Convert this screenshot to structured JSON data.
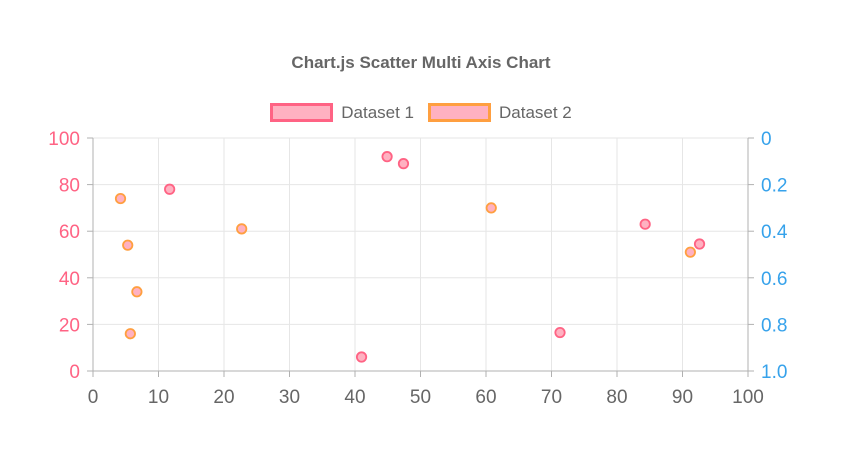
{
  "chart_data": {
    "type": "scatter",
    "title": "Chart.js Scatter Multi Axis Chart",
    "legend_position": "top",
    "grid": true,
    "colors": {
      "grid": "#e6e6e6",
      "axis_border": "#b1b1b1",
      "title_text": "#666666",
      "legend_text": "#666666",
      "x_tick_text": "#666666",
      "left_tick_text": "#ff6384",
      "right_tick_text": "#36a2eb",
      "point_fill": "#ffb1c1",
      "dataset1_border": "#ff6384",
      "dataset2_border": "#ff9f40"
    },
    "x_axis": {
      "min": 0,
      "max": 100,
      "ticks": [
        0,
        10,
        20,
        30,
        40,
        50,
        60,
        70,
        80,
        90,
        100
      ]
    },
    "y_left": {
      "min": 0,
      "max": 100,
      "ticks": [
        0,
        20,
        40,
        60,
        80,
        100
      ],
      "reversed": false
    },
    "y_right": {
      "min": 0,
      "max": 1,
      "tick_labels": [
        "0",
        "0.2",
        "0.4",
        "0.6",
        "0.8",
        "1.0"
      ],
      "reversed": true
    },
    "series": [
      {
        "name": "Dataset 1",
        "axis": "left",
        "border": "#ff6384",
        "fill": "#ffb1c1",
        "points": [
          {
            "x": 11.7,
            "y": 78
          },
          {
            "x": 41,
            "y": 6
          },
          {
            "x": 44.9,
            "y": 92
          },
          {
            "x": 47.4,
            "y": 89
          },
          {
            "x": 71.3,
            "y": 16.5
          },
          {
            "x": 84.3,
            "y": 63
          },
          {
            "x": 92.6,
            "y": 54.5
          }
        ]
      },
      {
        "name": "Dataset 2",
        "axis": "right",
        "border": "#ff9f40",
        "fill": "#ffb1c1",
        "points": [
          {
            "x": 4.2,
            "y": 0.26
          },
          {
            "x": 5.3,
            "y": 0.46
          },
          {
            "x": 5.7,
            "y": 0.84
          },
          {
            "x": 6.7,
            "y": 0.66
          },
          {
            "x": 22.7,
            "y": 0.39
          },
          {
            "x": 60.8,
            "y": 0.3
          },
          {
            "x": 91.2,
            "y": 0.49
          }
        ]
      }
    ]
  }
}
